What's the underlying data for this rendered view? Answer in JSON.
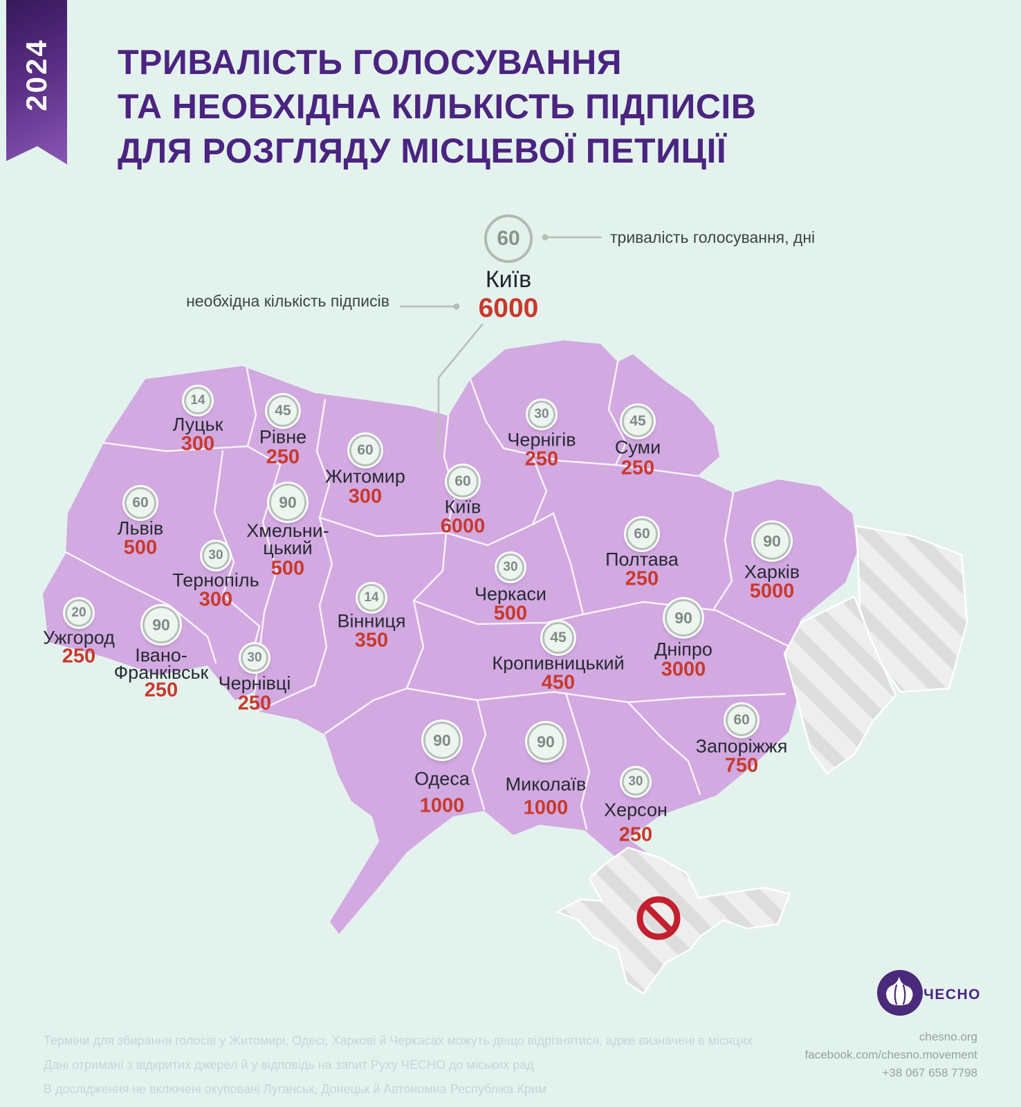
{
  "badge": {
    "year": "2024"
  },
  "title": {
    "line1": "ТРИВАЛІСТЬ ГОЛОСУВАННЯ",
    "line2": "ТА НЕОБХІДНА КІЛЬКІСТЬ ПІДПИСІВ",
    "line3": "ДЛЯ РОЗГЛЯДУ МІСЦЕВОЇ ПЕТИЦІЇ"
  },
  "legend": {
    "city": "Київ",
    "days": "60",
    "signatures": "6000",
    "days_label": "тривалість голосування, дні",
    "signatures_label": "необхідна кількість підписів"
  },
  "cities": [
    {
      "name": "Луцьк",
      "days": "14",
      "signatures": "300"
    },
    {
      "name": "Рівне",
      "days": "45",
      "signatures": "250"
    },
    {
      "name": "Житомир",
      "days": "60",
      "signatures": "300"
    },
    {
      "name": "Київ",
      "days": "60",
      "signatures": "6000"
    },
    {
      "name": "Чернігів",
      "days": "30",
      "signatures": "250"
    },
    {
      "name": "Суми",
      "days": "45",
      "signatures": "250"
    },
    {
      "name": "Львів",
      "days": "60",
      "signatures": "500"
    },
    {
      "name": "Хмельни-\nцький",
      "days": "90",
      "signatures": "500"
    },
    {
      "name": "Тернопіль",
      "days": "30",
      "signatures": "300"
    },
    {
      "name": "Полтава",
      "days": "60",
      "signatures": "250"
    },
    {
      "name": "Харків",
      "days": "90",
      "signatures": "5000"
    },
    {
      "name": "Ужгород",
      "days": "20",
      "signatures": "250"
    },
    {
      "name": "Івано-\nФранківськ",
      "days": "90",
      "signatures": "250"
    },
    {
      "name": "Чернівці",
      "days": "30",
      "signatures": "250"
    },
    {
      "name": "Вінниця",
      "days": "14",
      "signatures": "350"
    },
    {
      "name": "Черкаси",
      "days": "30",
      "signatures": "500"
    },
    {
      "name": "Кропивницький",
      "days": "45",
      "signatures": "450"
    },
    {
      "name": "Дніпро",
      "days": "90",
      "signatures": "3000"
    },
    {
      "name": "Одеса",
      "days": "90",
      "signatures": "1000"
    },
    {
      "name": "Миколаїв",
      "days": "90",
      "signatures": "1000"
    },
    {
      "name": "Херсон",
      "days": "30",
      "signatures": "250"
    },
    {
      "name": "Запоріжжя",
      "days": "60",
      "signatures": "750"
    }
  ],
  "chart_data": {
    "type": "map",
    "title": "Тривалість голосування та необхідна кількість підписів для розгляду місцевої петиції",
    "year": "2024",
    "series": [
      {
        "name": "тривалість голосування, дні",
        "values": [
          14,
          45,
          60,
          60,
          30,
          45,
          60,
          90,
          30,
          60,
          90,
          20,
          90,
          30,
          14,
          30,
          45,
          90,
          90,
          90,
          30,
          60
        ]
      },
      {
        "name": "необхідна кількість підписів",
        "values": [
          300,
          250,
          300,
          6000,
          250,
          250,
          500,
          500,
          300,
          250,
          5000,
          250,
          250,
          250,
          350,
          500,
          450,
          3000,
          1000,
          1000,
          250,
          750
        ]
      }
    ],
    "categories": [
      "Луцьк",
      "Рівне",
      "Житомир",
      "Київ",
      "Чернігів",
      "Суми",
      "Львів",
      "Хмельницький",
      "Тернопіль",
      "Полтава",
      "Харків",
      "Ужгород",
      "Івано-Франківськ",
      "Чернівці",
      "Вінниця",
      "Черкаси",
      "Кропивницький",
      "Дніпро",
      "Одеса",
      "Миколаїв",
      "Херсон",
      "Запоріжжя"
    ],
    "excluded_regions": [
      "Луганськ",
      "Донецьк",
      "Автономна Республіка Крим"
    ]
  },
  "footer": {
    "notes": [
      "Терміни для збирання голосів у Житомирі, Одесі, Харкові й Черкасах можуть дещо відрізнятися, адже визначені в місяцях",
      "Дані отримані з відкритих джерел й у відповідь на запит Руху ЧЕСНО до міських рад",
      "В дослідження не включені окуповані Луганськ, Донецьк й Автономна Республіка Крим"
    ]
  },
  "contact": {
    "org": "ЧЕСНО",
    "website": "chesno.org",
    "facebook": "facebook.com/chesno.movement",
    "phone": "+38 067 658 7798"
  },
  "colors": {
    "background": "#e4f2ee",
    "map_fill": "#d2a9e1",
    "title_purple": "#4b2480",
    "signature_red": "#c8392b",
    "badge_gray": "#7f8a85",
    "hatch_base": "#efeeee",
    "hatch_stripe": "#dedddd",
    "no_entry_red": "#c21f2f",
    "logo_purple": "#4a2a7a"
  }
}
